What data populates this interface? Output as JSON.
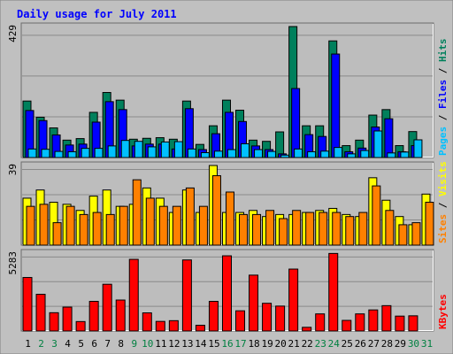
{
  "title": "Daily usage for July 2011",
  "legend": {
    "pages": "Pages",
    "files": "Files",
    "hits": "Hits",
    "sites": "Sites",
    "visits": "Visits",
    "kbytes": "KBytes",
    "sep": " / "
  },
  "colors": {
    "frame": "#c0c0c0",
    "plot_bg": "#bdbdbd",
    "title": "#0000ff",
    "hits": "#00805c",
    "files": "#0000ff",
    "pages": "#00c0ff",
    "visits": "#ffff00",
    "sites": "#ff8000",
    "kbytes": "#ff0000",
    "weekend_label": "#008040",
    "weekday_label": "#000000",
    "grid": "#8a8a8a"
  },
  "chart_data": [
    {
      "type": "bar",
      "panel": "hits-files-pages",
      "ymax_label": "429",
      "ylim": [
        0,
        429
      ],
      "categories": [
        "1",
        "2",
        "3",
        "4",
        "5",
        "6",
        "7",
        "8",
        "9",
        "10",
        "11",
        "12",
        "13",
        "14",
        "15",
        "16",
        "17",
        "18",
        "19",
        "20",
        "21",
        "22",
        "23",
        "24",
        "25",
        "26",
        "27",
        "28",
        "29",
        "30",
        "31"
      ],
      "weekend_days": [
        "2",
        "3",
        "9",
        "10",
        "16",
        "17",
        "23",
        "24",
        "30",
        "31"
      ],
      "series": [
        {
          "name": "Hits",
          "values": [
            185,
            132,
            97,
            57,
            62,
            148,
            213,
            188,
            60,
            63,
            65,
            60,
            185,
            43,
            104,
            188,
            155,
            57,
            53,
            84,
            429,
            104,
            104,
            382,
            39,
            57,
            139,
            157,
            39,
            85,
            0
          ]
        },
        {
          "name": "Files",
          "values": [
            154,
            121,
            74,
            41,
            44,
            116,
            183,
            157,
            38,
            44,
            44,
            28,
            160,
            26,
            78,
            148,
            118,
            38,
            26,
            12,
            226,
            75,
            69,
            339,
            19,
            31,
            100,
            127,
            19,
            39,
            0
          ]
        },
        {
          "name": "Pages",
          "values": [
            28,
            27,
            20,
            19,
            30,
            30,
            38,
            56,
            53,
            35,
            51,
            52,
            28,
            16,
            21,
            26,
            45,
            26,
            20,
            8,
            28,
            19,
            21,
            33,
            12,
            23,
            87,
            15,
            18,
            58,
            0
          ]
        }
      ]
    },
    {
      "type": "bar",
      "panel": "visits-sites",
      "ymax_label": "39",
      "ylim": [
        0,
        39
      ],
      "categories": [
        "1",
        "2",
        "3",
        "4",
        "5",
        "6",
        "7",
        "8",
        "9",
        "10",
        "11",
        "12",
        "13",
        "14",
        "15",
        "16",
        "17",
        "18",
        "19",
        "20",
        "21",
        "22",
        "23",
        "24",
        "25",
        "26",
        "27",
        "28",
        "29",
        "30",
        "31"
      ],
      "series": [
        {
          "name": "Visits",
          "values": [
            23,
            27,
            21,
            20,
            17,
            24,
            27,
            19,
            20,
            28,
            23,
            16,
            27,
            16,
            39,
            16,
            16,
            17,
            14,
            15,
            15,
            16,
            17,
            18,
            15,
            14,
            33,
            22,
            14,
            10,
            25
          ]
        },
        {
          "name": "Sites",
          "values": [
            19,
            20,
            11,
            19,
            15,
            16,
            15,
            19,
            32,
            23,
            19,
            19,
            28,
            19,
            34,
            26,
            15,
            15,
            17,
            13,
            17,
            16,
            16,
            16,
            14,
            16,
            29,
            17,
            10,
            11,
            21
          ]
        }
      ]
    },
    {
      "type": "bar",
      "panel": "kbytes",
      "ymax_label": "5283",
      "ylim": [
        0,
        5283
      ],
      "categories": [
        "1",
        "2",
        "3",
        "4",
        "5",
        "6",
        "7",
        "8",
        "9",
        "10",
        "11",
        "12",
        "13",
        "14",
        "15",
        "16",
        "17",
        "18",
        "19",
        "20",
        "21",
        "22",
        "23",
        "24",
        "25",
        "26",
        "27",
        "28",
        "29",
        "30",
        "31"
      ],
      "series": [
        {
          "name": "KBytes",
          "values": [
            3630,
            2490,
            1240,
            1620,
            640,
            2010,
            3170,
            2100,
            4860,
            1230,
            650,
            700,
            4820,
            390,
            2010,
            5100,
            1370,
            3790,
            1880,
            1690,
            4200,
            250,
            1160,
            5260,
            720,
            1160,
            1430,
            1720,
            1010,
            1030,
            0
          ]
        }
      ]
    }
  ]
}
